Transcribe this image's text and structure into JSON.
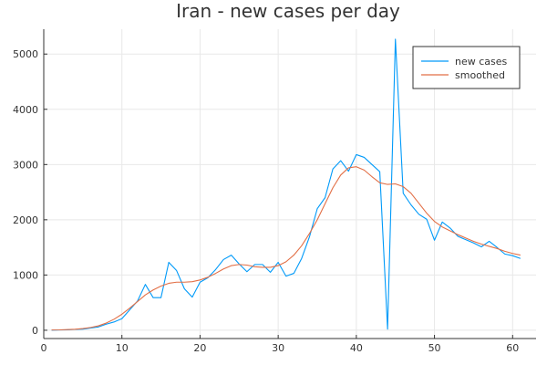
{
  "chart_data": {
    "type": "line",
    "title": "Iran - new cases per day",
    "xlabel": "",
    "ylabel": "",
    "xlim": [
      0,
      63
    ],
    "ylim": [
      -150,
      5450
    ],
    "xticks": [
      0,
      10,
      20,
      30,
      40,
      50,
      60
    ],
    "yticks": [
      0,
      1000,
      2000,
      3000,
      4000,
      5000
    ],
    "grid": true,
    "legend_position": "top-right",
    "series": [
      {
        "name": "new cases",
        "color": "#009AF9",
        "x": [
          1,
          2,
          3,
          4,
          5,
          6,
          7,
          8,
          9,
          10,
          11,
          12,
          13,
          14,
          15,
          16,
          17,
          18,
          19,
          20,
          21,
          22,
          23,
          24,
          25,
          26,
          27,
          28,
          29,
          30,
          31,
          32,
          33,
          34,
          35,
          36,
          37,
          38,
          39,
          40,
          41,
          42,
          43,
          44,
          45,
          46,
          47,
          48,
          49,
          50,
          51,
          52,
          53,
          54,
          55,
          56,
          57,
          58,
          59,
          60,
          61
        ],
        "values": [
          2,
          5,
          8,
          15,
          20,
          40,
          60,
          110,
          150,
          210,
          370,
          530,
          830,
          590,
          590,
          1230,
          1080,
          750,
          600,
          870,
          950,
          1100,
          1280,
          1360,
          1200,
          1060,
          1190,
          1190,
          1050,
          1230,
          980,
          1030,
          1300,
          1690,
          2200,
          2400,
          2920,
          3070,
          2880,
          3180,
          3130,
          3000,
          2870,
          20,
          5270,
          2480,
          2270,
          2100,
          2010,
          1630,
          1960,
          1850,
          1700,
          1640,
          1580,
          1510,
          1610,
          1500,
          1380,
          1350,
          1300
        ]
      },
      {
        "name": "smoothed",
        "color": "#E26F46",
        "x": [
          1,
          2,
          3,
          4,
          5,
          6,
          7,
          8,
          9,
          10,
          11,
          12,
          13,
          14,
          15,
          16,
          17,
          18,
          19,
          20,
          21,
          22,
          23,
          24,
          25,
          26,
          27,
          28,
          29,
          30,
          31,
          32,
          33,
          34,
          35,
          36,
          37,
          38,
          39,
          40,
          41,
          42,
          43,
          44,
          45,
          46,
          47,
          48,
          49,
          50,
          51,
          52,
          53,
          54,
          55,
          56,
          57,
          58,
          59,
          60,
          61
        ],
        "values": [
          5,
          7,
          12,
          18,
          30,
          50,
          80,
          130,
          200,
          290,
          400,
          520,
          640,
          730,
          800,
          850,
          870,
          870,
          880,
          910,
          960,
          1030,
          1110,
          1170,
          1190,
          1180,
          1150,
          1140,
          1140,
          1170,
          1240,
          1360,
          1530,
          1750,
          2000,
          2290,
          2580,
          2810,
          2940,
          2960,
          2900,
          2780,
          2670,
          2640,
          2650,
          2600,
          2480,
          2300,
          2120,
          1970,
          1870,
          1800,
          1730,
          1670,
          1610,
          1560,
          1520,
          1480,
          1430,
          1390,
          1360
        ]
      }
    ]
  }
}
